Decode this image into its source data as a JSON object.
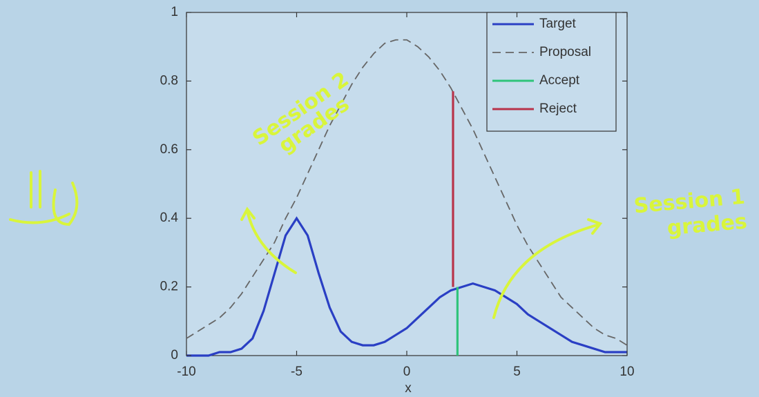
{
  "chart_data": {
    "type": "line",
    "xlabel": "x",
    "xlim": [
      -10,
      10
    ],
    "xticks": [
      -10,
      -5,
      0,
      5,
      10
    ],
    "ylim": [
      0,
      1
    ],
    "yticks": [
      0,
      0.2,
      0.4,
      0.6,
      0.8,
      1
    ],
    "legend": "upper right",
    "series": [
      {
        "name": "Target",
        "color": "#2a3fc4",
        "linestyle": "solid",
        "x": [
          -10,
          -9.5,
          -9,
          -8.5,
          -8,
          -7.5,
          -7,
          -6.5,
          -6,
          -5.5,
          -5,
          -4.5,
          -4,
          -3.5,
          -3,
          -2.5,
          -2,
          -1.5,
          -1,
          -0.5,
          0,
          0.5,
          1,
          1.5,
          2,
          2.5,
          3,
          3.5,
          4,
          4.5,
          5,
          5.5,
          6,
          6.5,
          7,
          7.5,
          8,
          8.5,
          9,
          9.5,
          10
        ],
        "values": [
          0,
          0,
          0,
          0.01,
          0.01,
          0.02,
          0.05,
          0.13,
          0.24,
          0.35,
          0.4,
          0.35,
          0.24,
          0.14,
          0.07,
          0.04,
          0.03,
          0.03,
          0.04,
          0.06,
          0.08,
          0.11,
          0.14,
          0.17,
          0.19,
          0.2,
          0.21,
          0.2,
          0.19,
          0.17,
          0.15,
          0.12,
          0.1,
          0.08,
          0.06,
          0.04,
          0.03,
          0.02,
          0.01,
          0.01,
          0.01
        ]
      },
      {
        "name": "Proposal",
        "color": "#666666",
        "linestyle": "dashed",
        "x": [
          -10,
          -9.5,
          -9,
          -8.5,
          -8,
          -7.5,
          -7,
          -6.5,
          -6,
          -5.5,
          -5,
          -4.5,
          -4,
          -3.5,
          -3,
          -2.5,
          -2,
          -1.5,
          -1,
          -0.5,
          0,
          0.5,
          1,
          1.5,
          2,
          2.5,
          3,
          3.5,
          4,
          4.5,
          5,
          5.5,
          6,
          6.5,
          7,
          7.5,
          8,
          8.5,
          9,
          9.5,
          10
        ],
        "values": [
          0.05,
          0.07,
          0.09,
          0.11,
          0.14,
          0.18,
          0.23,
          0.28,
          0.33,
          0.4,
          0.46,
          0.53,
          0.6,
          0.67,
          0.73,
          0.79,
          0.84,
          0.88,
          0.91,
          0.92,
          0.92,
          0.9,
          0.87,
          0.83,
          0.78,
          0.72,
          0.66,
          0.59,
          0.52,
          0.45,
          0.38,
          0.32,
          0.27,
          0.22,
          0.17,
          0.14,
          0.11,
          0.08,
          0.06,
          0.05,
          0.03
        ]
      },
      {
        "name": "Accept",
        "color": "#2fc47a",
        "linestyle": "solid",
        "x": [
          2.3,
          2.3
        ],
        "values": [
          0,
          0.2
        ]
      },
      {
        "name": "Reject",
        "color": "#b8334a",
        "linestyle": "solid",
        "x": [
          2.1,
          2.1
        ],
        "values": [
          0.2,
          0.77
        ]
      }
    ],
    "annotations": [
      {
        "lines": [
          "Session 2",
          "grades"
        ]
      },
      {
        "lines": [
          "Session 1",
          "grades"
        ]
      }
    ]
  }
}
